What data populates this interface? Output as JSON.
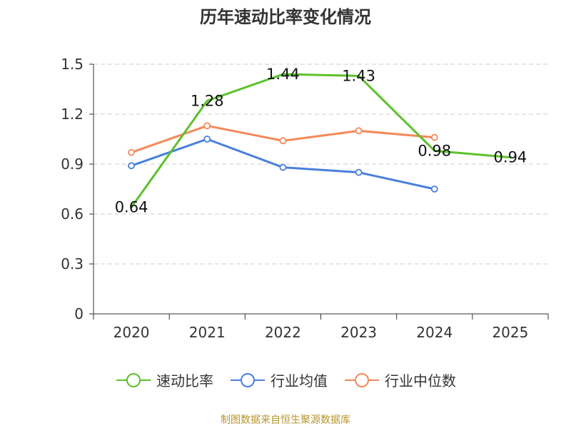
{
  "chart_data": {
    "type": "line",
    "title": "历年速动比率变化情况",
    "categories": [
      "2020",
      "2021",
      "2022",
      "2023",
      "2024",
      "2025"
    ],
    "ylim": [
      0,
      1.5
    ],
    "yticks": [
      "0",
      "0.3",
      "0.6",
      "0.9",
      "1.2",
      "1.5"
    ],
    "ytick_values": [
      0,
      0.3,
      0.6,
      0.9,
      1.2,
      1.5
    ],
    "grid": true,
    "legend_position": "bottom",
    "series": [
      {
        "name": "速动比率",
        "color": "#5cc12a",
        "values": [
          0.64,
          1.28,
          1.44,
          1.43,
          0.98,
          0.94
        ],
        "labels": [
          "0.64",
          "1.28",
          "1.44",
          "1.43",
          "0.98",
          "0.94"
        ],
        "markers": false
      },
      {
        "name": "行业均值",
        "color": "#4a7fdc",
        "values": [
          0.89,
          1.05,
          0.88,
          0.85,
          0.75,
          null
        ],
        "markers": true
      },
      {
        "name": "行业中位数",
        "color": "#f5895a",
        "values": [
          0.97,
          1.13,
          1.04,
          1.1,
          1.06,
          null
        ],
        "markers": true
      }
    ]
  },
  "footer": {
    "source": "制图数据来自恒生聚源数据库"
  }
}
